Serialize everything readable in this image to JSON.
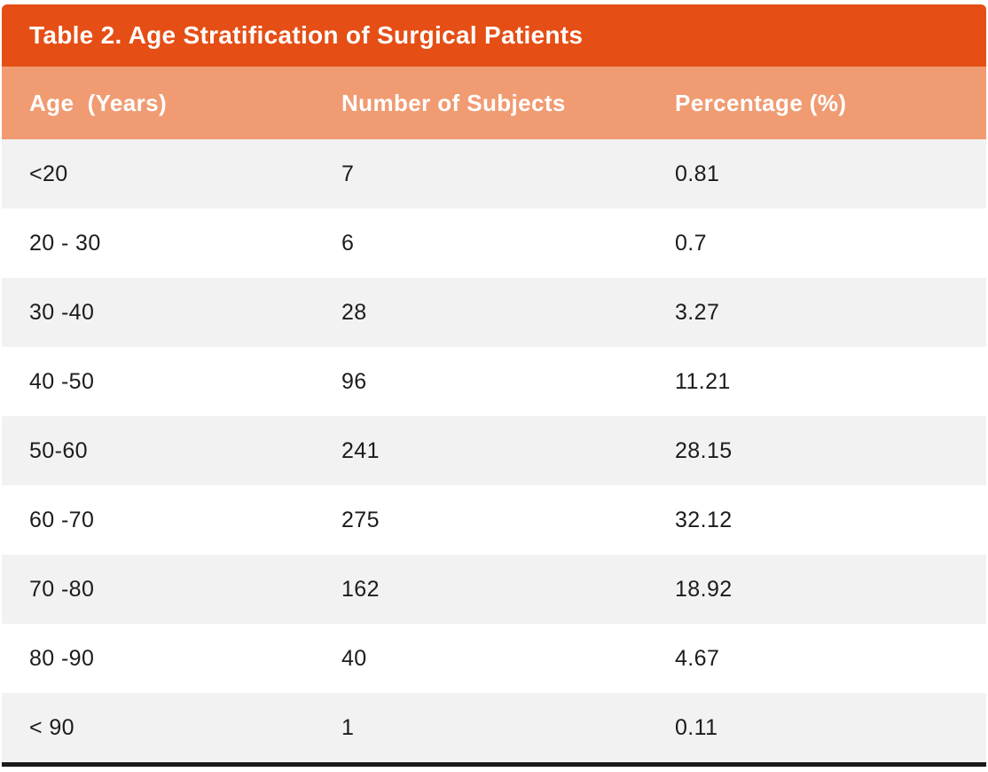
{
  "table": {
    "title": "Table 2. Age Stratification of Surgical Patients",
    "columns": {
      "age": "Age  (Years)",
      "subjects": "Number of Subjects",
      "percentage": "Percentage (%)"
    },
    "rows": [
      [
        "<20",
        "7",
        "0.81"
      ],
      [
        "20 - 30",
        "6",
        "0.7"
      ],
      [
        "30 -40",
        "28",
        "3.27"
      ],
      [
        "40 -50",
        "96",
        "11.21"
      ],
      [
        "50-60",
        "241",
        "28.15"
      ],
      [
        "60 -70",
        "275",
        "32.12"
      ],
      [
        "70 -80",
        "162",
        "18.92"
      ],
      [
        "80 -90",
        "40",
        "4.67"
      ],
      [
        "< 90",
        "1",
        "0.11"
      ]
    ]
  },
  "colors": {
    "title_bg": "#E54E14",
    "header_bg": "#F09B72",
    "row_alt_bg": "#F2F2F2",
    "row_bg": "#FFFFFF",
    "header_text": "#FFFFFF",
    "body_text": "#1C1C1C",
    "bottom_rule": "#1A1A1A"
  }
}
